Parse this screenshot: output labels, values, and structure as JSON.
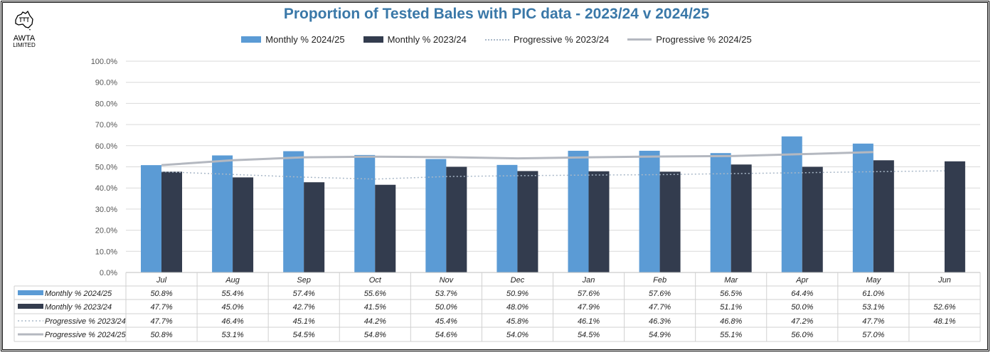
{
  "logo": {
    "text": "AWTA",
    "subtext": "LIMITED"
  },
  "chart_data": {
    "type": "bar",
    "title": "Proportion of Tested Bales with PIC data - 2023/24 v 2024/25",
    "categories": [
      "Jul",
      "Aug",
      "Sep",
      "Oct",
      "Nov",
      "Dec",
      "Jan",
      "Feb",
      "Mar",
      "Apr",
      "May",
      "Jun"
    ],
    "ylim": [
      0,
      100
    ],
    "yticks": [
      "0.0%",
      "10.0%",
      "20.0%",
      "30.0%",
      "40.0%",
      "50.0%",
      "60.0%",
      "70.0%",
      "80.0%",
      "90.0%",
      "100.0%"
    ],
    "grid": true,
    "legend_position": "top",
    "series": [
      {
        "name": "Monthly % 2024/25",
        "kind": "bar",
        "color": "#5b9bd5",
        "values": [
          50.8,
          55.4,
          57.4,
          55.6,
          53.7,
          50.9,
          57.6,
          57.6,
          56.5,
          64.4,
          61.0,
          null
        ]
      },
      {
        "name": "Monthly % 2023/24",
        "kind": "bar",
        "color": "#333c4e",
        "values": [
          47.7,
          45.0,
          42.7,
          41.5,
          50.0,
          48.0,
          47.9,
          47.7,
          51.1,
          50.0,
          53.1,
          52.6
        ]
      },
      {
        "name": "Progressive % 2023/24",
        "kind": "line-dotted",
        "color": "#a9b8c8",
        "values": [
          47.7,
          46.4,
          45.1,
          44.2,
          45.4,
          45.8,
          46.1,
          46.3,
          46.8,
          47.2,
          47.7,
          48.1
        ]
      },
      {
        "name": "Progressive % 2024/25",
        "kind": "line",
        "color": "#b4b8c0",
        "values": [
          50.8,
          53.1,
          54.5,
          54.8,
          54.6,
          54.0,
          54.5,
          54.9,
          55.1,
          56.0,
          57.0,
          null
        ]
      }
    ],
    "data_table": true
  }
}
